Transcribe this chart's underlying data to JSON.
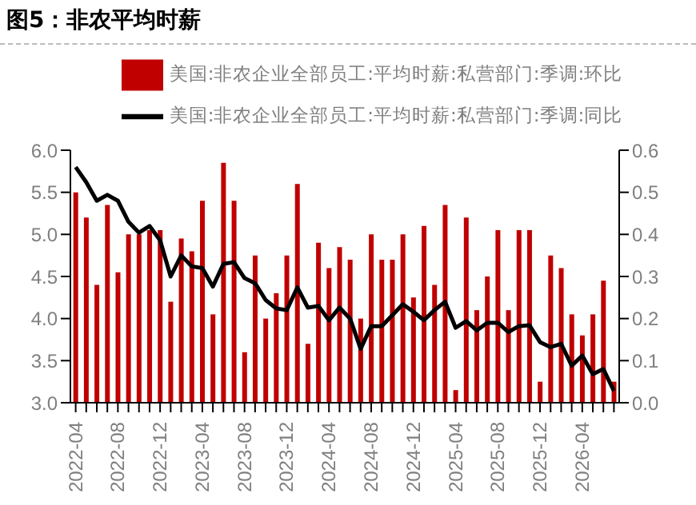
{
  "chart_data": {
    "type": "bar",
    "title": "图5：非农平均时薪",
    "categories": [
      "2022-04",
      null,
      null,
      null,
      "2022-08",
      null,
      null,
      null,
      "2022-12",
      null,
      null,
      null,
      "2023-04",
      null,
      null,
      null,
      "2023-08",
      null,
      null,
      null,
      "2023-12",
      null,
      null,
      null,
      "2024-04",
      null,
      null,
      null,
      "2024-08",
      null,
      null,
      null,
      "2024-12",
      null,
      null,
      null,
      "2025-04",
      null,
      null,
      null,
      "2025-08",
      null,
      null,
      null,
      "2025-12",
      null,
      null,
      null,
      "2026-04",
      null,
      null,
      null
    ],
    "series": [
      {
        "name": "美国:非农企业全部员工:平均时薪:私营部门:季调:环比",
        "axis": "y2",
        "color": "#c00000",
        "values": [
          0.5,
          0.44,
          0.28,
          0.47,
          0.31,
          0.4,
          0.4,
          0.41,
          0.41,
          0.24,
          0.39,
          0.36,
          0.48,
          0.21,
          0.57,
          0.48,
          0.12,
          0.35,
          0.2,
          0.26,
          0.35,
          0.52,
          0.14,
          0.38,
          0.32,
          0.37,
          0.34,
          0.2,
          0.4,
          0.34,
          0.34,
          0.4,
          0.25,
          0.42,
          0.28,
          0.47,
          0.03,
          0.44,
          0.22,
          0.3,
          0.41,
          0.22,
          0.41,
          0.41,
          0.05,
          0.35,
          0.32,
          0.21,
          0.16,
          0.21,
          0.29,
          0.05
        ]
      },
      {
        "name": "美国:非农企业全部员工:平均时薪:私营部门:季调:同比",
        "type": "line",
        "color": "#000000",
        "values": [
          5.8,
          5.62,
          5.4,
          5.47,
          5.4,
          5.15,
          5.02,
          5.1,
          4.93,
          4.5,
          4.75,
          4.62,
          4.6,
          4.38,
          4.65,
          4.67,
          4.48,
          4.42,
          4.22,
          4.12,
          4.1,
          4.37,
          4.13,
          4.15,
          3.98,
          4.13,
          4.0,
          3.64,
          3.91,
          3.91,
          4.04,
          4.17,
          4.08,
          3.98,
          4.1,
          4.2,
          3.89,
          3.97,
          3.86,
          3.95,
          3.95,
          3.84,
          3.91,
          3.92,
          3.72,
          3.66,
          3.7,
          3.44,
          3.56,
          3.34,
          3.4,
          3.14
        ]
      }
    ],
    "ylim": [
      3,
      6
    ],
    "yticks": [
      {
        "value": 3,
        "label": "3.0"
      },
      {
        "value": 3.5,
        "label": "3.5"
      },
      {
        "value": 4,
        "label": "4.0"
      },
      {
        "value": 4.5,
        "label": "4.5"
      },
      {
        "value": 5,
        "label": "5.0"
      },
      {
        "value": 5.5,
        "label": "5.5"
      },
      {
        "value": 6,
        "label": "6.0"
      }
    ],
    "y2lim": [
      0,
      0.6
    ],
    "y2ticks": [
      {
        "value": 0,
        "label": "0.0"
      },
      0.1,
      0.2,
      0.3,
      0.4,
      0.5,
      0.6
    ],
    "legend": "top",
    "grid": false,
    "marker": "none",
    "line_style": "solid"
  }
}
